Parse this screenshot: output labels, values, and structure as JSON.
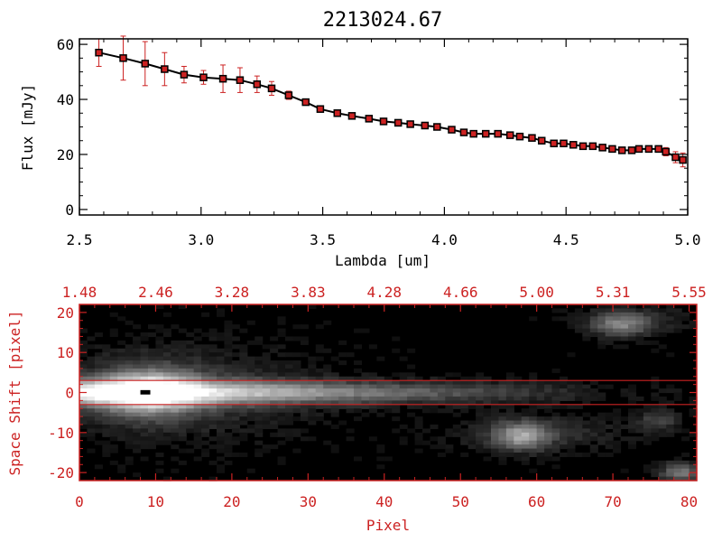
{
  "colors": {
    "accent": "#cc2222",
    "ink": "#000000",
    "background": "#ffffff"
  },
  "chart_data": [
    {
      "type": "line",
      "title": "2213024.67",
      "xlabel": "Lambda [um]",
      "ylabel": "Flux [mJy]",
      "xlim": [
        2.5,
        5.0
      ],
      "ylim": [
        -2,
        62
      ],
      "xticks": [
        2.5,
        3.0,
        3.5,
        4.0,
        4.5,
        5.0
      ],
      "xtick_labels": [
        "2.5",
        "3.0",
        "3.5",
        "4.0",
        "4.5",
        "5.0"
      ],
      "yticks": [
        0,
        20,
        40,
        60
      ],
      "ytick_labels": [
        "0",
        "20",
        "40",
        "60"
      ],
      "marker": "square",
      "series": [
        {
          "line_color": "#000000",
          "marker_color": "#cc2222",
          "error_color": "#cc2222",
          "x": [
            2.58,
            2.68,
            2.77,
            2.85,
            2.93,
            3.01,
            3.09,
            3.16,
            3.23,
            3.29,
            3.36,
            3.43,
            3.49,
            3.56,
            3.62,
            3.69,
            3.75,
            3.81,
            3.86,
            3.92,
            3.97,
            4.03,
            4.08,
            4.12,
            4.17,
            4.22,
            4.27,
            4.31,
            4.36,
            4.4,
            4.45,
            4.49,
            4.53,
            4.57,
            4.61,
            4.65,
            4.69,
            4.73,
            4.77,
            4.8,
            4.84,
            4.88,
            4.91,
            4.95,
            4.98
          ],
          "y": [
            57,
            55,
            53,
            51,
            49,
            48,
            47.5,
            47,
            45.5,
            44,
            41.5,
            39,
            36.5,
            35,
            34,
            33,
            32,
            31.5,
            31,
            30.5,
            30,
            29,
            28,
            27.5,
            27.5,
            27.5,
            27,
            26.5,
            26,
            25,
            24,
            24,
            23.5,
            23,
            23,
            22.5,
            22,
            21.5,
            21.5,
            22,
            22,
            22,
            21,
            19,
            18
          ],
          "err": [
            5,
            8,
            8,
            6,
            3,
            2.5,
            5,
            4.5,
            3,
            2.5,
            1.5,
            1,
            1,
            1,
            1,
            1,
            1,
            1,
            1,
            1,
            1,
            1,
            1,
            1,
            1,
            1,
            1,
            1,
            1,
            1,
            1,
            1,
            1,
            1,
            1,
            1,
            1,
            1,
            1,
            1,
            1,
            1,
            1.5,
            2,
            2.5
          ]
        }
      ]
    },
    {
      "type": "heatmap",
      "xlabel": "Pixel",
      "ylabel": "Space Shift [pixel]",
      "xlim": [
        0,
        81
      ],
      "ylim": [
        -22,
        22
      ],
      "xticks": [
        0,
        10,
        20,
        30,
        40,
        50,
        60,
        70,
        80
      ],
      "xtick_labels": [
        "0",
        "10",
        "20",
        "30",
        "40",
        "50",
        "60",
        "70",
        "80"
      ],
      "yticks": [
        -20,
        -10,
        0,
        10,
        20
      ],
      "ytick_labels": [
        "-20",
        "-10",
        "0",
        "10",
        "20"
      ],
      "top_ticks": [
        0,
        10,
        20,
        30,
        40,
        50,
        60,
        70,
        80
      ],
      "top_tick_labels": [
        "1.48",
        "2.46",
        "3.28",
        "3.83",
        "4.28",
        "4.66",
        "5.00",
        "5.31",
        "5.55"
      ],
      "aperture_lines": [
        3,
        -3
      ],
      "colormap": "grayscale",
      "grid": false
    }
  ]
}
